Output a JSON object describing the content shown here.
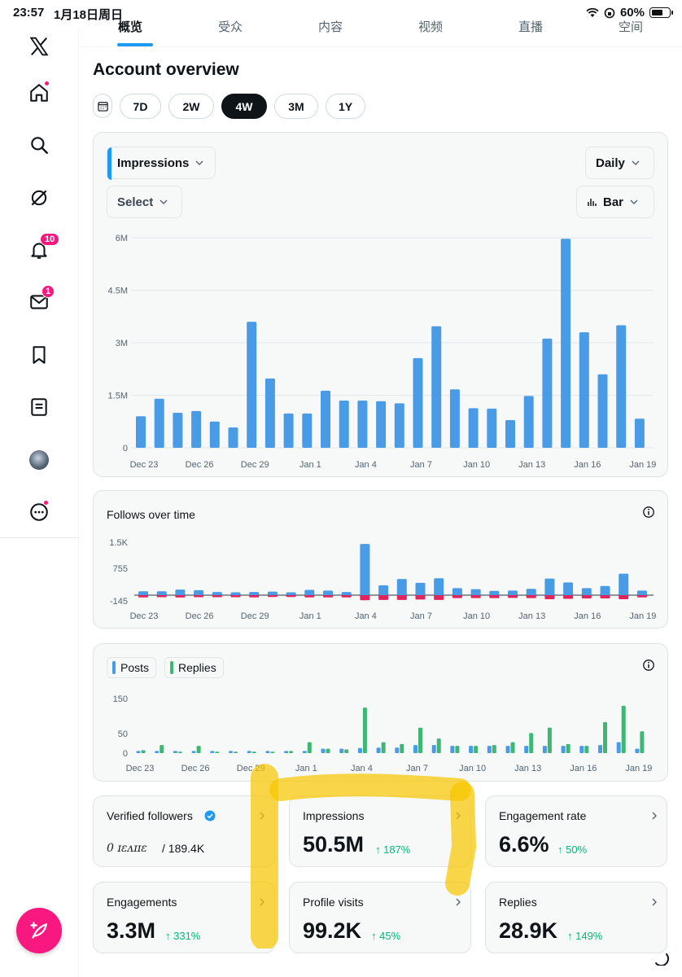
{
  "status_bar": {
    "time": "23:57",
    "date": "1月18日周日",
    "battery": "60%"
  },
  "tabs": [
    {
      "label": "概览",
      "active": true
    },
    {
      "label": "受众",
      "active": false
    },
    {
      "label": "内容",
      "active": false
    },
    {
      "label": "视频",
      "active": false
    },
    {
      "label": "直播",
      "active": false
    },
    {
      "label": "空间",
      "active": false
    }
  ],
  "rail": {
    "icons": [
      "x-logo-icon",
      "home-icon",
      "search-icon",
      "grok-icon",
      "notifications-icon",
      "messages-icon",
      "bookmarks-icon",
      "lists-icon",
      "avatar",
      "more-icon"
    ],
    "notifications_count": "10",
    "messages_count": "1"
  },
  "page": {
    "title": "Account overview"
  },
  "ranges": [
    {
      "label": "7D",
      "active": false
    },
    {
      "label": "2W",
      "active": false
    },
    {
      "label": "4W",
      "active": true
    },
    {
      "label": "3M",
      "active": false
    },
    {
      "label": "1Y",
      "active": false
    }
  ],
  "controls": {
    "metric": "Impressions",
    "interval": "Daily",
    "compare": "Select",
    "chart_type": "Bar"
  },
  "colors": {
    "accent": "#1d9bf0",
    "positive": "#00ba7c",
    "negative": "#e0245e",
    "replies": "#3fb674",
    "brand_pink": "#f91880",
    "highlighter": "#f7c600"
  },
  "x_ticks": [
    "Dec 23",
    "Dec 26",
    "Dec 29",
    "Jan 1",
    "Jan 4",
    "Jan 7",
    "Jan 10",
    "Jan 13",
    "Jan 16",
    "Jan 19"
  ],
  "chart_data": [
    {
      "type": "bar",
      "x": [
        "Dec 23",
        "Dec 24",
        "Dec 25",
        "Dec 26",
        "Dec 27",
        "Dec 28",
        "Dec 29",
        "Dec 30",
        "Dec 31",
        "Jan 1",
        "Jan 2",
        "Jan 3",
        "Jan 4",
        "Jan 5",
        "Jan 6",
        "Jan 7",
        "Jan 8",
        "Jan 9",
        "Jan 10",
        "Jan 11",
        "Jan 12",
        "Jan 13",
        "Jan 14",
        "Jan 15",
        "Jan 16",
        "Jan 17",
        "Jan 18",
        "Jan 19"
      ],
      "values": [
        900000,
        1400000,
        1000000,
        1050000,
        750000,
        580000,
        3600000,
        1980000,
        980000,
        980000,
        1630000,
        1350000,
        1350000,
        1330000,
        1270000,
        2560000,
        3470000,
        1670000,
        1130000,
        1120000,
        790000,
        1480000,
        3120000,
        5970000,
        3300000,
        2100000,
        3500000,
        830000
      ],
      "yticks": [
        "0",
        "1.5M",
        "3M",
        "4.5M",
        "6M"
      ],
      "ylim": [
        0,
        6000000
      ],
      "title": "",
      "xlabel": "",
      "ylabel": ""
    },
    {
      "type": "bar",
      "title": "Follows over time",
      "series": [
        {
          "name": "",
          "values": [
            110,
            110,
            160,
            140,
            90,
            80,
            90,
            100,
            80,
            150,
            130,
            90,
            1450,
            280,
            460,
            350,
            480,
            200,
            170,
            120,
            130,
            180,
            470,
            360,
            200,
            260,
            610,
            130
          ]
        },
        {
          "name": "",
          "values": [
            -60,
            -55,
            -65,
            -55,
            -55,
            -55,
            -60,
            -50,
            -50,
            -60,
            -60,
            -60,
            -140,
            -130,
            -130,
            -120,
            -130,
            -80,
            -80,
            -80,
            -75,
            -80,
            -110,
            -100,
            -90,
            -90,
            -110,
            -60
          ]
        }
      ],
      "yticks": [
        "-145",
        "755",
        "1.5K"
      ],
      "ylim": [
        -145,
        1650
      ]
    },
    {
      "type": "bar",
      "series": [
        {
          "name": "Posts",
          "values": [
            6,
            6,
            6,
            6,
            6,
            6,
            6,
            6,
            6,
            6,
            12,
            12,
            14,
            15,
            15,
            22,
            22,
            20,
            20,
            20,
            20,
            20,
            20,
            20,
            20,
            22,
            30,
            12
          ]
        },
        {
          "name": "Replies",
          "values": [
            8,
            22,
            4,
            20,
            4,
            4,
            4,
            4,
            6,
            30,
            12,
            10,
            125,
            30,
            25,
            70,
            40,
            20,
            20,
            22,
            30,
            55,
            70,
            25,
            20,
            85,
            130,
            60
          ]
        }
      ],
      "yticks": [
        "0",
        "50",
        "150"
      ],
      "ylim": [
        0,
        160
      ]
    }
  ],
  "stats": [
    {
      "label": "Verified followers",
      "value": "",
      "sub_hidden": "0 ɪɛᴧɪɪɛ",
      "sub": "/ 189.4K",
      "change": "",
      "verified_badge": true
    },
    {
      "label": "Impressions",
      "value": "50.5M",
      "change": "↑ 187%"
    },
    {
      "label": "Engagement rate",
      "value": "6.6%",
      "change": "↑ 50%"
    },
    {
      "label": "Engagements",
      "value": "3.3M",
      "change": "↑ 331%"
    },
    {
      "label": "Profile visits",
      "value": "99.2K",
      "change": "↑ 45%"
    },
    {
      "label": "Replies",
      "value": "28.9K",
      "change": "↑ 149%"
    }
  ]
}
